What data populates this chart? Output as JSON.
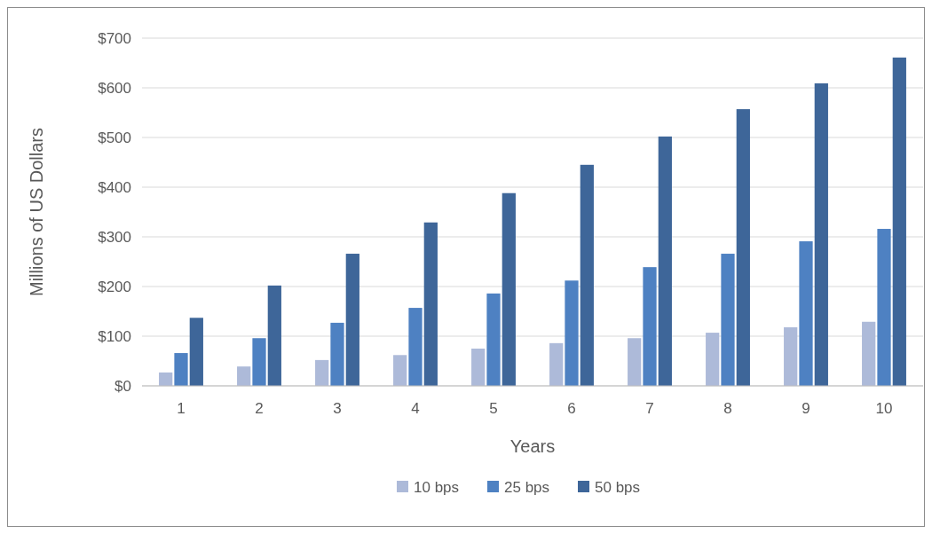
{
  "chart_data": {
    "type": "bar",
    "xlabel": "Years",
    "ylabel": "Millions of US Dollars",
    "categories": [
      "1",
      "2",
      "3",
      "4",
      "5",
      "6",
      "7",
      "8",
      "9",
      "10"
    ],
    "series": [
      {
        "name": "10 bps",
        "color": "#adbad9",
        "values": [
          27,
          39,
          52,
          62,
          75,
          86,
          96,
          107,
          118,
          129
        ]
      },
      {
        "name": "25 bps",
        "color": "#4e81c2",
        "values": [
          66,
          96,
          127,
          157,
          186,
          212,
          239,
          266,
          291,
          316
        ]
      },
      {
        "name": "50 bps",
        "color": "#3e6699",
        "values": [
          137,
          202,
          266,
          329,
          388,
          445,
          502,
          557,
          609,
          661
        ]
      }
    ],
    "ylim": [
      0,
      700
    ],
    "yticks": [
      {
        "value": 0,
        "label": "$0"
      },
      {
        "value": 100,
        "label": "$100"
      },
      {
        "value": 200,
        "label": "$200"
      },
      {
        "value": 300,
        "label": "$300"
      },
      {
        "value": 400,
        "label": "$400"
      },
      {
        "value": 500,
        "label": "$500"
      },
      {
        "value": 600,
        "label": "$600"
      },
      {
        "value": 700,
        "label": "$700"
      }
    ],
    "grid": "y",
    "legend": "bottom"
  }
}
